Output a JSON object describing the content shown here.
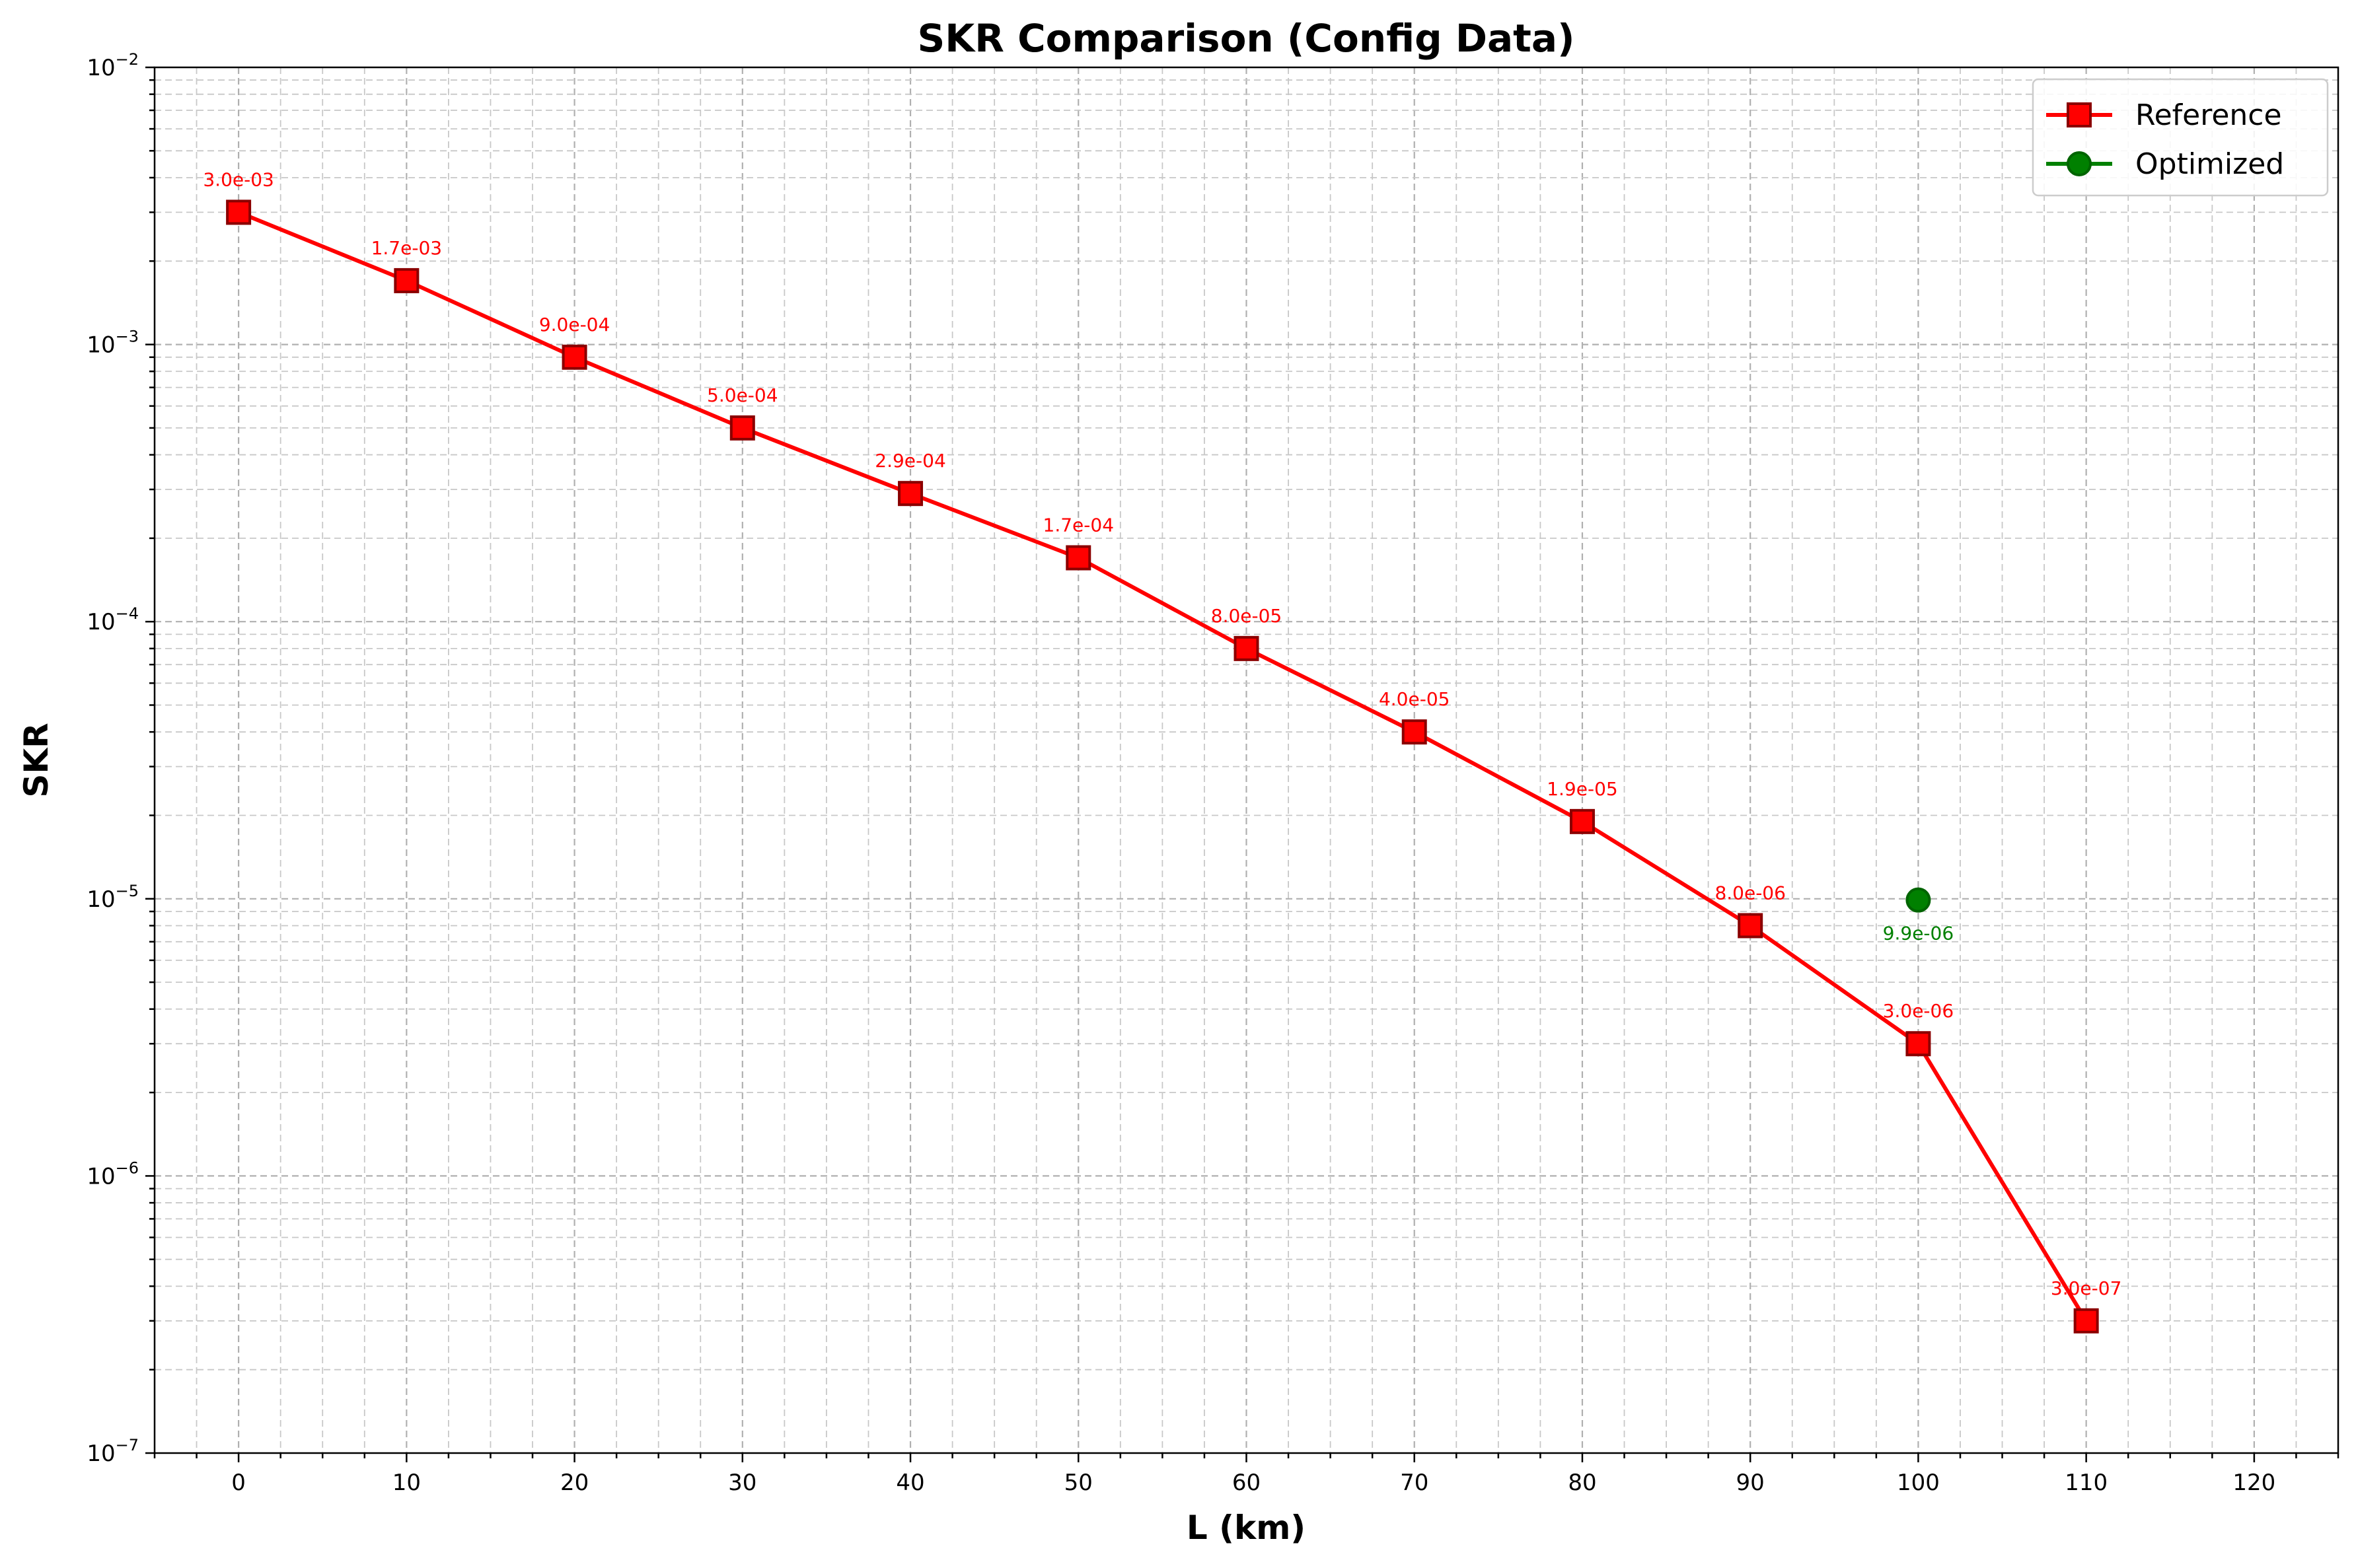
{
  "chart_data": {
    "type": "line",
    "title": "SKR Comparison (Config Data)",
    "xlabel": "L (km)",
    "ylabel": "SKR",
    "xlim": [
      -5,
      125
    ],
    "ylim": [
      1e-07,
      0.01
    ],
    "yscale": "log",
    "grid": "major and minor, dashed",
    "legend_position": "top-right",
    "x_ticks": [
      "0",
      "10",
      "20",
      "30",
      "40",
      "50",
      "60",
      "70",
      "80",
      "90",
      "100",
      "110",
      "120"
    ],
    "y_ticks": [
      {
        "base": "10",
        "exp": "−7"
      },
      {
        "base": "10",
        "exp": "−6"
      },
      {
        "base": "10",
        "exp": "−5"
      },
      {
        "base": "10",
        "exp": "−4"
      },
      {
        "base": "10",
        "exp": "−3"
      },
      {
        "base": "10",
        "exp": "−2"
      }
    ],
    "series": [
      {
        "name": "Reference",
        "color": "#ff0000",
        "edge_color": "#8b0000",
        "marker": "square",
        "x": [
          0,
          10,
          20,
          30,
          40,
          50,
          60,
          70,
          80,
          90,
          100,
          110
        ],
        "y": [
          0.003,
          0.0017,
          0.0009,
          0.0005,
          0.00029,
          0.00017,
          8e-05,
          4e-05,
          1.9e-05,
          8e-06,
          3e-06,
          3e-07
        ],
        "labels": [
          "3.0e-03",
          "1.7e-03",
          "9.0e-04",
          "5.0e-04",
          "2.9e-04",
          "1.7e-04",
          "8.0e-05",
          "4.0e-05",
          "1.9e-05",
          "8.0e-06",
          "3.0e-06",
          "3.0e-07"
        ]
      },
      {
        "name": "Optimized",
        "color": "#008000",
        "edge_color": "#006400",
        "marker": "circle",
        "x": [
          100
        ],
        "y": [
          9.9e-06
        ],
        "labels": [
          "9.9e-06"
        ]
      }
    ]
  }
}
